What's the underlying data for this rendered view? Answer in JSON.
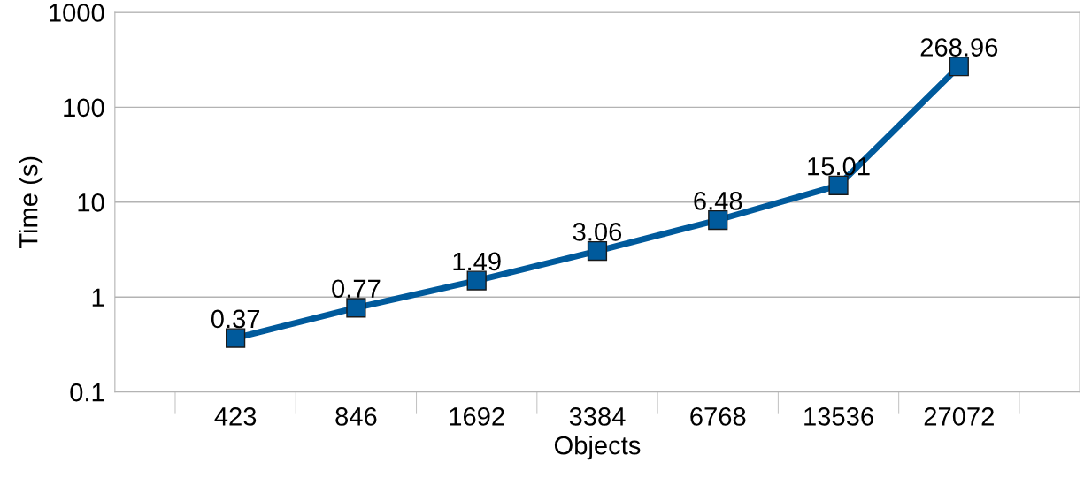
{
  "chart_data": {
    "type": "line",
    "xlabel": "Objects",
    "ylabel": "Time (s)",
    "categories": [
      "423",
      "846",
      "1692",
      "3384",
      "6768",
      "13536",
      "27072"
    ],
    "series": [
      {
        "color": "#005a9c",
        "values": [
          0.37,
          0.77,
          1.49,
          3.06,
          6.48,
          15.01,
          268.96
        ]
      }
    ],
    "log": "y",
    "ylim": [
      0.1,
      1000
    ],
    "yticks": [
      0.1,
      1,
      10,
      100,
      1000
    ],
    "grid": "y",
    "marker": "square",
    "line_style": "solid",
    "data_labels": true,
    "legend": false
  }
}
